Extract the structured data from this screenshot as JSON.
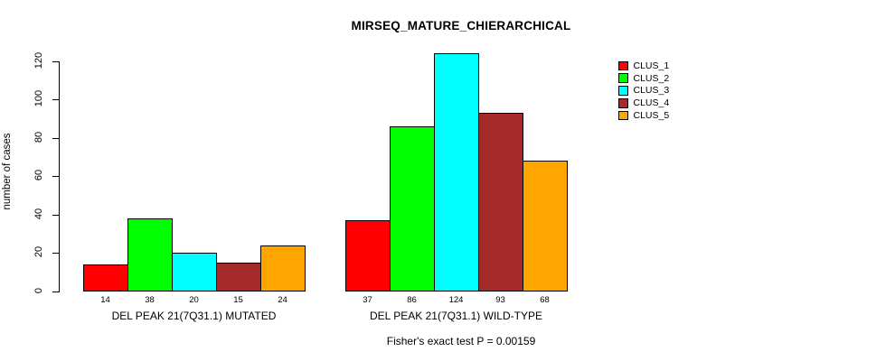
{
  "title": "MIRSEQ_MATURE_CHIERARCHICAL",
  "footer": "Fisher's exact test P = 0.00159",
  "chart_data": {
    "type": "bar",
    "title": "MIRSEQ_MATURE_CHIERARCHICAL",
    "xlabel": "",
    "ylabel": "number of cases",
    "ylim": [
      0,
      124
    ],
    "yticks": [
      0,
      20,
      40,
      60,
      80,
      100,
      120
    ],
    "grid": false,
    "legend_position": "right",
    "bar_border_color": "#000000",
    "categories": [
      "DEL PEAK 21(7Q31.1) MUTATED",
      "DEL PEAK 21(7Q31.1) WILD-TYPE"
    ],
    "series": [
      {
        "name": "CLUS_1",
        "color": "#ff0000",
        "values": [
          14,
          37
        ]
      },
      {
        "name": "CLUS_2",
        "color": "#00ff00",
        "values": [
          38,
          86
        ]
      },
      {
        "name": "CLUS_3",
        "color": "#00ffff",
        "values": [
          20,
          124
        ]
      },
      {
        "name": "CLUS_4",
        "color": "#a52a2a",
        "values": [
          15,
          93
        ]
      },
      {
        "name": "CLUS_5",
        "color": "#ffa500",
        "values": [
          24,
          68
        ]
      }
    ],
    "value_labels_shown": true,
    "annotation": "Fisher's exact test P = 0.00159"
  }
}
